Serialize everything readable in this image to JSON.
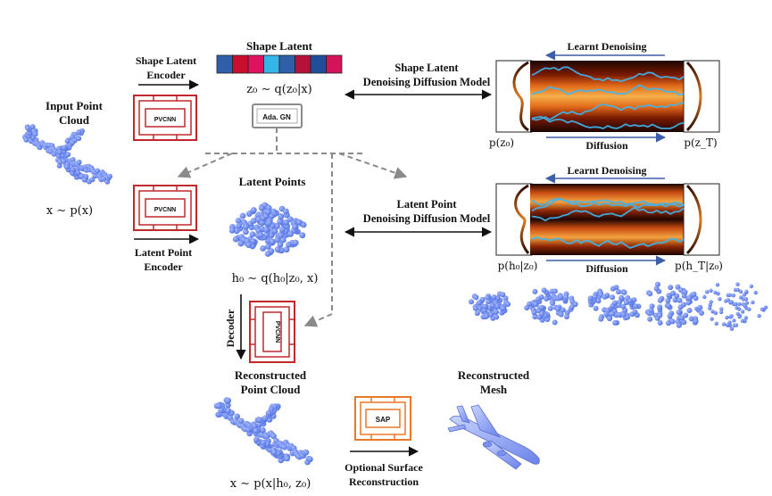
{
  "input": {
    "title_line1": "Input Point",
    "title_line2": "Cloud",
    "formula": "x ∼ p(x)"
  },
  "shape_latent_encoder": {
    "label_line1": "Shape Latent",
    "label_line2": "Encoder",
    "block_label": "PVCNN"
  },
  "shape_latent": {
    "title": "Shape Latent",
    "formula": "z₀ ∼ q(z₀|x)",
    "cell_colors": [
      "#2f5fa8",
      "#c8102e",
      "#e0115f",
      "#35b6e8",
      "#2f5fa8",
      "#b5123a",
      "#1f4f9a",
      "#d4145a"
    ],
    "adagn_label": "Ada. GN"
  },
  "latent_point_encoder": {
    "label_line1": "Latent Point",
    "label_line2": "Encoder",
    "block_label": "PVCNN"
  },
  "latent_points": {
    "title": "Latent Points",
    "formula": "h₀ ∼ q(h₀|z₀, x)"
  },
  "decoder": {
    "label": "Decoder",
    "block_label": "PVCNN"
  },
  "reconstructed_point_cloud": {
    "title_line1": "Reconstructed",
    "title_line2": "Point Cloud",
    "formula": "x ∼ p(x|h₀, z₀)"
  },
  "sap": {
    "block_label": "SAP",
    "label_line1": "Optional Surface",
    "label_line2": "Reconstruction"
  },
  "reconstructed_mesh": {
    "title_line1": "Reconstructed",
    "title_line2": "Mesh"
  },
  "shape_ddm": {
    "label_line1": "Shape Latent",
    "label_line2": "Denoising Diffusion Model",
    "learnt_denoising": "Learnt Denoising",
    "diffusion": "Diffusion",
    "left_dist": "p(z₀)",
    "right_dist": "p(z_T)"
  },
  "point_ddm": {
    "label_line1": "Latent Point",
    "label_line2": "Denoising Diffusion Model",
    "learnt_denoising": "Learnt Denoising",
    "diffusion": "Diffusion",
    "left_dist": "p(h₀|z₀)",
    "right_dist": "p(h_T|z₀)"
  },
  "colors": {
    "pvcnn_red": "#c0282d",
    "sap_orange": "#e8782a",
    "cloud_blue": "#6f8ef0",
    "arrow_blue": "#3b5fa8",
    "dashed_gray": "#8a8a8a"
  }
}
